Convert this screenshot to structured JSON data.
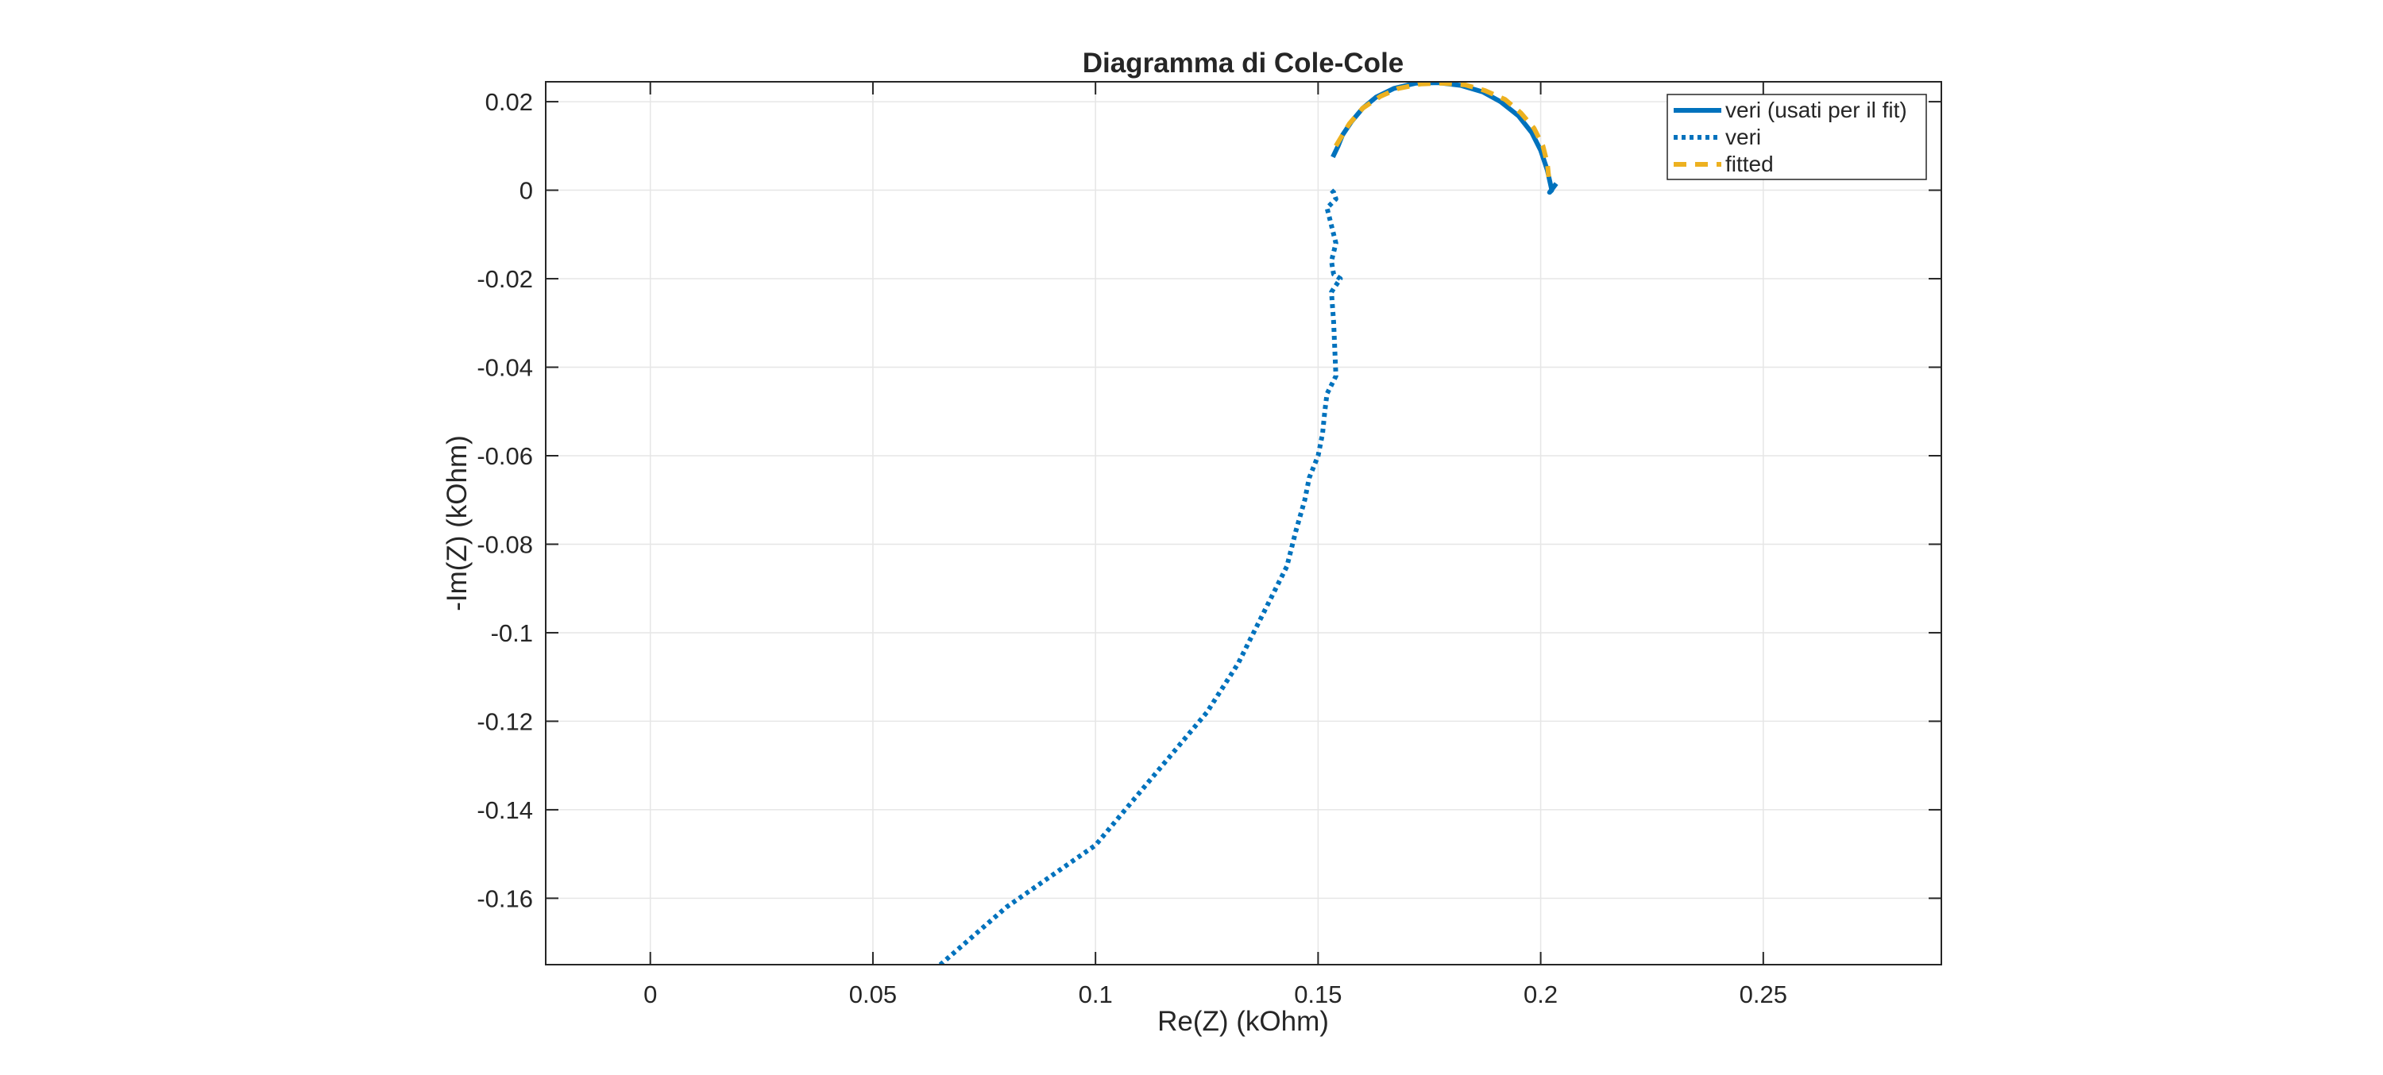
{
  "chart_data": {
    "type": "line",
    "title": "Diagramma di Cole-Cole",
    "xlabel": "Re(Z) (kOhm)",
    "ylabel": "-Im(Z) (kOhm)",
    "xlim": [
      -0.0235,
      0.29
    ],
    "ylim": [
      -0.175,
      0.0245
    ],
    "xticks": [
      0,
      0.05,
      0.1,
      0.15,
      0.2,
      0.25
    ],
    "xtick_labels": [
      "0",
      "0.05",
      "0.1",
      "0.15",
      "0.2",
      "0.25"
    ],
    "yticks": [
      0.02,
      0,
      -0.02,
      -0.04,
      -0.06,
      -0.08,
      -0.1,
      -0.12,
      -0.14,
      -0.16
    ],
    "ytick_labels": [
      "0.02",
      "0",
      "-0.02",
      "-0.04",
      "-0.06",
      "-0.08",
      "-0.1",
      "-0.12",
      "-0.14",
      "-0.16"
    ],
    "grid": true,
    "legend_position": "top-right",
    "series": [
      {
        "name": "veri (usati per il fit)",
        "color": "#0072BD",
        "style": "solid",
        "x": [
          0.1533,
          0.1545,
          0.1555,
          0.1575,
          0.16,
          0.163,
          0.167,
          0.172,
          0.177,
          0.182,
          0.187,
          0.191,
          0.195,
          0.198,
          0.2,
          0.2015,
          0.2025,
          0.202,
          0.2035
        ],
        "y": [
          0.0075,
          0.01,
          0.0125,
          0.0155,
          0.0185,
          0.021,
          0.023,
          0.0242,
          0.0243,
          0.0237,
          0.0222,
          0.02,
          0.0168,
          0.013,
          0.009,
          0.0045,
          0.0,
          -0.0005,
          0.0015
        ]
      },
      {
        "name": "veri",
        "color": "#0072BD",
        "style": "dotted",
        "x": [
          0.153,
          0.1535,
          0.154,
          0.152,
          0.153,
          0.154,
          0.153,
          0.1533,
          0.1535,
          0.155,
          0.153,
          0.1535,
          0.154,
          0.152,
          0.1515,
          0.151,
          0.15,
          0.148,
          0.147,
          0.145,
          0.143,
          0.138,
          0.132,
          0.125,
          0.115,
          0.1,
          0.09,
          0.08,
          0.072,
          0.064
        ],
        "y": [
          0.0,
          -0.0005,
          -0.002,
          -0.004,
          -0.008,
          -0.012,
          -0.016,
          -0.018,
          -0.019,
          -0.02,
          -0.023,
          -0.03,
          -0.042,
          -0.046,
          -0.05,
          -0.055,
          -0.06,
          -0.065,
          -0.07,
          -0.077,
          -0.085,
          -0.095,
          -0.107,
          -0.118,
          -0.13,
          -0.148,
          -0.155,
          -0.162,
          -0.169,
          -0.176
        ]
      },
      {
        "name": "fitted",
        "color": "#EDB120",
        "style": "dashed",
        "x": [
          0.154,
          0.157,
          0.16,
          0.164,
          0.168,
          0.173,
          0.178,
          0.183,
          0.1875,
          0.192,
          0.1955,
          0.1985,
          0.2005,
          0.2015,
          0.2018
        ],
        "y": [
          0.01,
          0.015,
          0.0185,
          0.0212,
          0.023,
          0.024,
          0.0242,
          0.0238,
          0.0225,
          0.0205,
          0.0175,
          0.014,
          0.01,
          0.006,
          0.003
        ]
      }
    ]
  }
}
